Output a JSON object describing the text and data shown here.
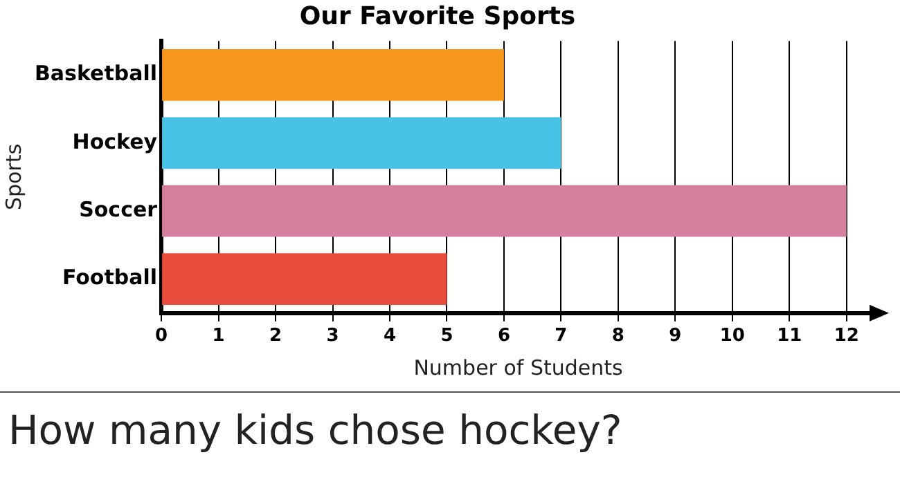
{
  "chart_data": {
    "type": "bar",
    "orientation": "horizontal",
    "title": "Our Favorite Sports",
    "xlabel": "Number of Students",
    "ylabel": "Sports",
    "categories": [
      "Basketball",
      "Hockey",
      "Soccer",
      "Football"
    ],
    "values": [
      6,
      7,
      12,
      5
    ],
    "colors": [
      "#f7981d",
      "#48c3e6",
      "#d5809f",
      "#e84c3d"
    ],
    "xlim": [
      0,
      12.5
    ],
    "xticks": [
      0,
      1,
      2,
      3,
      4,
      5,
      6,
      7,
      8,
      9,
      10,
      11,
      12
    ],
    "grid": "x",
    "legend": false,
    "annotations": [
      "How many kids chose hockey?"
    ]
  }
}
